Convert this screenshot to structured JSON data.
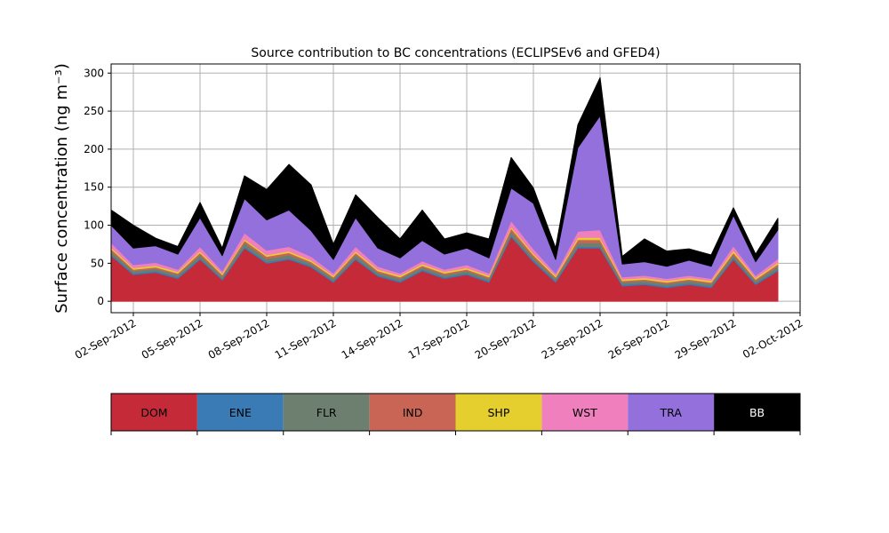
{
  "chart_data": {
    "type": "area",
    "stacked": true,
    "title": "Source contribution to BC concentrations (ECLIPSEv6 and GFED4)",
    "ylabel": "Surface concentration (ng m⁻³)",
    "xlabel": "",
    "ylim": [
      -15,
      312
    ],
    "xlim": [
      "2012-09-01",
      "2012-10-02"
    ],
    "grid": true,
    "legend_position": "bottom",
    "y_ticks": [
      "0",
      "50",
      "100",
      "150",
      "200",
      "250",
      "300"
    ],
    "x_ticks": [
      "02-Sep-2012",
      "05-Sep-2012",
      "08-Sep-2012",
      "11-Sep-2012",
      "14-Sep-2012",
      "17-Sep-2012",
      "20-Sep-2012",
      "23-Sep-2012",
      "26-Sep-2012",
      "29-Sep-2012",
      "02-Oct-2012"
    ],
    "dates": [
      "2012-09-01",
      "2012-09-02",
      "2012-09-03",
      "2012-09-04",
      "2012-09-05",
      "2012-09-06",
      "2012-09-07",
      "2012-09-08",
      "2012-09-09",
      "2012-09-10",
      "2012-09-11",
      "2012-09-12",
      "2012-09-13",
      "2012-09-14",
      "2012-09-15",
      "2012-09-16",
      "2012-09-17",
      "2012-09-18",
      "2012-09-19",
      "2012-09-20",
      "2012-09-21",
      "2012-09-22",
      "2012-09-23",
      "2012-09-24",
      "2012-09-25",
      "2012-09-26",
      "2012-09-27",
      "2012-09-28",
      "2012-09-29",
      "2012-09-30",
      "2012-10-01"
    ],
    "categories": [
      "DOM",
      "ENE",
      "FLR",
      "IND",
      "SHP",
      "WST",
      "TRA",
      "BB"
    ],
    "series": [
      {
        "name": "DOM",
        "color": "#c42a37",
        "values": [
          60,
          35,
          38,
          30,
          55,
          28,
          70,
          50,
          55,
          45,
          25,
          55,
          33,
          25,
          40,
          30,
          35,
          25,
          85,
          52,
          25,
          70,
          70,
          20,
          22,
          18,
          22,
          18,
          55,
          22,
          40
        ]
      },
      {
        "name": "ENE",
        "color": "#3a7ab5",
        "values": [
          2,
          2,
          2,
          2,
          2,
          2,
          2,
          2,
          2,
          2,
          2,
          2,
          2,
          2,
          2,
          2,
          2,
          2,
          2,
          2,
          2,
          2,
          2,
          2,
          2,
          2,
          2,
          2,
          2,
          2,
          2
        ]
      },
      {
        "name": "FLR",
        "color": "#6d8070",
        "values": [
          4,
          3,
          3,
          3,
          4,
          3,
          5,
          4,
          4,
          3,
          3,
          4,
          3,
          3,
          3,
          3,
          3,
          3,
          5,
          4,
          3,
          5,
          5,
          3,
          3,
          3,
          3,
          3,
          4,
          3,
          4
        ]
      },
      {
        "name": "IND",
        "color": "#c96555",
        "values": [
          3,
          2,
          2,
          2,
          3,
          2,
          3,
          3,
          3,
          2,
          2,
          3,
          2,
          2,
          2,
          2,
          2,
          2,
          4,
          3,
          2,
          4,
          4,
          2,
          2,
          2,
          2,
          2,
          3,
          2,
          3
        ]
      },
      {
        "name": "SHP",
        "color": "#e5cf2e",
        "values": [
          2,
          2,
          2,
          2,
          2,
          2,
          2,
          2,
          2,
          2,
          2,
          2,
          2,
          2,
          2,
          2,
          2,
          2,
          2,
          2,
          2,
          3,
          3,
          2,
          2,
          2,
          2,
          2,
          3,
          2,
          2
        ]
      },
      {
        "name": "WST",
        "color": "#f07fbd",
        "values": [
          6,
          4,
          4,
          3,
          6,
          3,
          8,
          6,
          6,
          5,
          3,
          6,
          4,
          3,
          4,
          3,
          4,
          3,
          8,
          6,
          3,
          8,
          10,
          3,
          3,
          3,
          3,
          3,
          6,
          3,
          5
        ]
      },
      {
        "name": "TRA",
        "color": "#9370db",
        "values": [
          23,
          22,
          22,
          20,
          38,
          20,
          45,
          40,
          48,
          34,
          18,
          38,
          24,
          20,
          27,
          20,
          22,
          20,
          43,
          60,
          18,
          110,
          150,
          17,
          18,
          16,
          20,
          16,
          40,
          18,
          38
        ]
      },
      {
        "name": "BB",
        "color": "#000000",
        "values": [
          20,
          30,
          10,
          10,
          20,
          10,
          30,
          40,
          60,
          60,
          20,
          30,
          40,
          25,
          40,
          20,
          20,
          25,
          40,
          20,
          15,
          30,
          50,
          10,
          30,
          20,
          15,
          15,
          10,
          10,
          15
        ]
      }
    ]
  }
}
